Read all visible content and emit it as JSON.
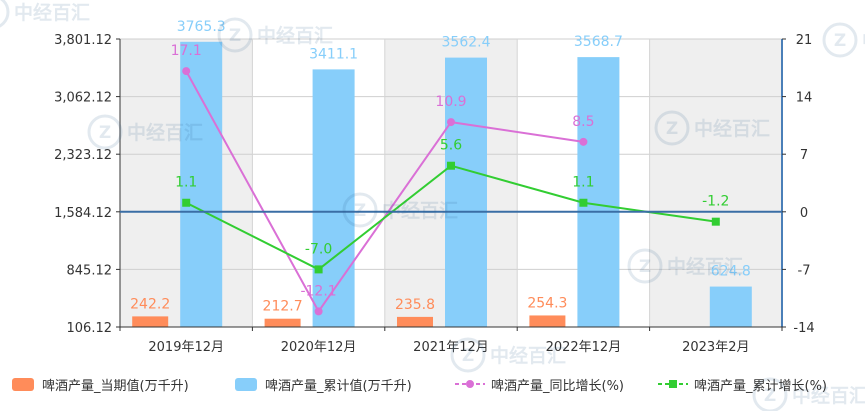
{
  "chart_data": {
    "type": "bar",
    "categories": [
      "2019年12月",
      "2020年12月",
      "2021年12月",
      "2022年12月",
      "2023年2月"
    ],
    "series": [
      {
        "name": "啤酒产量_当期值(万千升)",
        "type": "bar",
        "axis": "left",
        "color": "#ff8c5a",
        "values": [
          242.2,
          212.7,
          235.8,
          254.3,
          null
        ],
        "labels": [
          "242.2",
          "212.7",
          "235.8",
          "254.3",
          ""
        ]
      },
      {
        "name": "啤酒产量_累计值(万千升)",
        "type": "bar",
        "axis": "left",
        "color": "#87cefa",
        "values": [
          3765.3,
          3411.1,
          3562.4,
          3568.7,
          624.8
        ],
        "labels": [
          "3765.3",
          "3411.1",
          "3562.4",
          "3568.7",
          "624.8"
        ]
      },
      {
        "name": "啤酒产量_同比增长(%)",
        "type": "line",
        "axis": "right",
        "color": "#da70d6",
        "values": [
          17.1,
          -12.1,
          10.9,
          8.5,
          null
        ],
        "labels": [
          "17.1",
          "-12.1",
          "10.9",
          "8.5",
          ""
        ]
      },
      {
        "name": "啤酒产量_累计增长(%)",
        "type": "line",
        "axis": "right",
        "color": "#32cd32",
        "values": [
          1.1,
          -7.0,
          5.6,
          1.1,
          -1.2
        ],
        "labels": [
          "1.1",
          "-7.0",
          "5.6",
          "1.1",
          "-1.2"
        ]
      }
    ],
    "y_left": {
      "ticks": [
        "3,801.12",
        "3,062.12",
        "2,323.12",
        "1,584.12",
        "845.12",
        "106.12"
      ],
      "range": [
        106.12,
        3801.12
      ]
    },
    "y_right": {
      "ticks": [
        "21",
        "14",
        "7",
        "0",
        "-7",
        "-14"
      ],
      "range": [
        -14,
        21
      ]
    },
    "grid": true,
    "legend_position": "bottom",
    "watermark": "中经百汇"
  }
}
